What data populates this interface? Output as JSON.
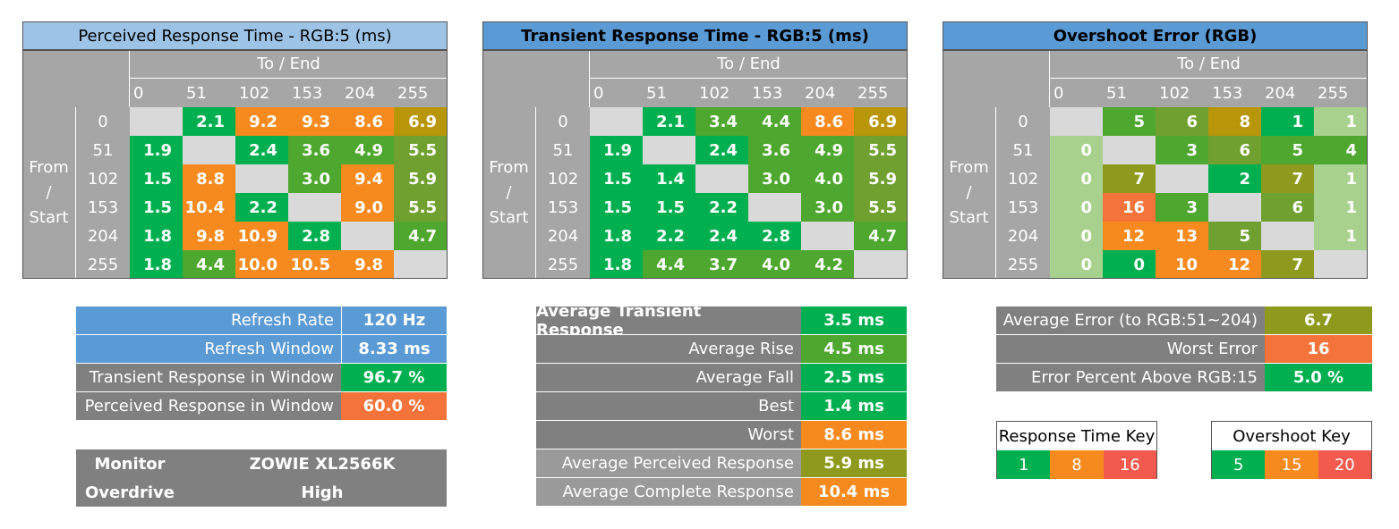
{
  "colors": {
    "green": "#00b050",
    "lime": "#4ea72e",
    "olive": "#70a030",
    "khaki": "#8e9a1e",
    "olivegold": "#a0a020",
    "gold": "#b8960a",
    "orange": "#f78a1e",
    "red_orange": "#f4733a",
    "red": "#f25a4e",
    "lightgreen": "#a9d18e",
    "grey": "#a6a6a6",
    "dark_grey": "#808080",
    "empty": "#d9d9d9",
    "blue_light": "#9dc3e6",
    "blue": "#5b9bd5"
  },
  "chart_data": [
    {
      "type": "heatmap",
      "title": "Perceived Response Time - RGB:5 (ms)",
      "xlabel": "To / End",
      "ylabel": "From / Start",
      "categories": [
        "0",
        "51",
        "102",
        "153",
        "204",
        "255"
      ],
      "values": [
        [
          null,
          2.1,
          9.2,
          9.3,
          8.6,
          6.9
        ],
        [
          1.9,
          null,
          2.4,
          3.6,
          4.9,
          5.5
        ],
        [
          1.5,
          8.8,
          null,
          3.0,
          9.4,
          5.9
        ],
        [
          1.5,
          10.4,
          2.2,
          null,
          9.0,
          5.5
        ],
        [
          1.8,
          9.8,
          10.9,
          2.8,
          null,
          4.7
        ],
        [
          1.8,
          4.4,
          10.0,
          10.5,
          9.8,
          null
        ]
      ],
      "display": [
        [
          "",
          "2.1",
          "9.2",
          "9.3",
          "8.6",
          "6.9"
        ],
        [
          "1.9",
          "",
          "2.4",
          "3.6",
          "4.9",
          "5.5"
        ],
        [
          "1.5",
          "8.8",
          "",
          "3.0",
          "9.4",
          "5.9"
        ],
        [
          "1.5",
          "10.4",
          "2.2",
          "",
          "9.0",
          "5.5"
        ],
        [
          "1.8",
          "9.8",
          "10.9",
          "2.8",
          "",
          "4.7"
        ],
        [
          "1.8",
          "4.4",
          "10.0",
          "10.5",
          "9.8",
          ""
        ]
      ],
      "cell_colors": [
        [
          "empty",
          "green",
          "orange",
          "orange",
          "orange",
          "gold"
        ],
        [
          "green",
          "empty",
          "green",
          "lime",
          "lime",
          "olive"
        ],
        [
          "green",
          "orange",
          "empty",
          "lime",
          "orange",
          "olive"
        ],
        [
          "green",
          "orange",
          "green",
          "empty",
          "orange",
          "olive"
        ],
        [
          "green",
          "orange",
          "orange",
          "green",
          "empty",
          "lime"
        ],
        [
          "green",
          "lime",
          "orange",
          "orange",
          "orange",
          "empty"
        ]
      ]
    },
    {
      "type": "heatmap",
      "title": "Transient Response Time - RGB:5 (ms)",
      "xlabel": "To / End",
      "ylabel": "From / Start",
      "categories": [
        "0",
        "51",
        "102",
        "153",
        "204",
        "255"
      ],
      "values": [
        [
          null,
          2.1,
          3.4,
          4.4,
          8.6,
          6.9
        ],
        [
          1.9,
          null,
          2.4,
          3.6,
          4.9,
          5.5
        ],
        [
          1.5,
          1.4,
          null,
          3.0,
          4.0,
          5.9
        ],
        [
          1.5,
          1.5,
          2.2,
          null,
          3.0,
          5.5
        ],
        [
          1.8,
          2.2,
          2.4,
          2.8,
          null,
          4.7
        ],
        [
          1.8,
          4.4,
          3.7,
          4.0,
          4.2,
          null
        ]
      ],
      "display": [
        [
          "",
          "2.1",
          "3.4",
          "4.4",
          "8.6",
          "6.9"
        ],
        [
          "1.9",
          "",
          "2.4",
          "3.6",
          "4.9",
          "5.5"
        ],
        [
          "1.5",
          "1.4",
          "",
          "3.0",
          "4.0",
          "5.9"
        ],
        [
          "1.5",
          "1.5",
          "2.2",
          "",
          "3.0",
          "5.5"
        ],
        [
          "1.8",
          "2.2",
          "2.4",
          "2.8",
          "",
          "4.7"
        ],
        [
          "1.8",
          "4.4",
          "3.7",
          "4.0",
          "4.2",
          ""
        ]
      ],
      "cell_colors": [
        [
          "empty",
          "green",
          "lime",
          "lime",
          "orange",
          "gold"
        ],
        [
          "green",
          "empty",
          "green",
          "lime",
          "lime",
          "olive"
        ],
        [
          "green",
          "green",
          "empty",
          "lime",
          "lime",
          "olive"
        ],
        [
          "green",
          "green",
          "green",
          "empty",
          "lime",
          "olive"
        ],
        [
          "green",
          "green",
          "green",
          "green",
          "empty",
          "lime"
        ],
        [
          "green",
          "lime",
          "lime",
          "lime",
          "lime",
          "empty"
        ]
      ]
    },
    {
      "type": "heatmap",
      "title": "Overshoot Error (RGB)",
      "xlabel": "To / End",
      "ylabel": "From / Start",
      "categories": [
        "0",
        "51",
        "102",
        "153",
        "204",
        "255"
      ],
      "values": [
        [
          null,
          5,
          6,
          8,
          1,
          1
        ],
        [
          0,
          null,
          3,
          6,
          5,
          4
        ],
        [
          0,
          7,
          null,
          2,
          7,
          1
        ],
        [
          0,
          16,
          3,
          null,
          6,
          1
        ],
        [
          0,
          12,
          13,
          5,
          null,
          1
        ],
        [
          0,
          0,
          10,
          12,
          7,
          null
        ]
      ],
      "display": [
        [
          "",
          "5",
          "6",
          "8",
          "1",
          "1"
        ],
        [
          "0",
          "",
          "3",
          "6",
          "5",
          "4"
        ],
        [
          "0",
          "7",
          "",
          "2",
          "7",
          "1"
        ],
        [
          "0",
          "16",
          "3",
          "",
          "6",
          "1"
        ],
        [
          "0",
          "12",
          "13",
          "5",
          "",
          "1"
        ],
        [
          "0",
          "0",
          "10",
          "12",
          "7",
          ""
        ]
      ],
      "cell_colors": [
        [
          "empty",
          "lime",
          "olive",
          "gold",
          "green",
          "lightgreen"
        ],
        [
          "lightgreen",
          "empty",
          "lime",
          "olive",
          "lime",
          "lime"
        ],
        [
          "lightgreen",
          "khaki",
          "empty",
          "green",
          "khaki",
          "lightgreen"
        ],
        [
          "lightgreen",
          "red_orange",
          "lime",
          "empty",
          "olive",
          "lightgreen"
        ],
        [
          "lightgreen",
          "orange",
          "orange",
          "olive",
          "empty",
          "lightgreen"
        ],
        [
          "lightgreen",
          "green",
          "orange",
          "orange",
          "khaki",
          "empty"
        ]
      ]
    }
  ],
  "axis": {
    "to_end": "To / End",
    "from": "From",
    "slash": "/",
    "start": "Start"
  },
  "refresh_table": [
    {
      "label": "Refresh Rate",
      "value": "120 Hz",
      "label_bg": "blue",
      "value_bg": "blue"
    },
    {
      "label": "Refresh Window",
      "value": "8.33 ms",
      "label_bg": "blue",
      "value_bg": "blue"
    },
    {
      "label": "Transient Response in Window",
      "value": "96.7 %",
      "label_bg": "dark_grey",
      "value_bg": "green"
    },
    {
      "label": "Perceived Response in Window",
      "value": "60.0 %",
      "label_bg": "dark_grey",
      "value_bg": "red_orange"
    }
  ],
  "monitor_info": {
    "monitor_label": "Monitor",
    "monitor_value": "ZOWIE XL2566K",
    "overdrive_label": "Overdrive",
    "overdrive_value": "High"
  },
  "averages_table": [
    {
      "label": "Average Transient Response",
      "value": "3.5 ms",
      "bold_label": true,
      "value_bg": "green"
    },
    {
      "label": "Average Rise",
      "value": "4.5 ms",
      "bold_label": false,
      "value_bg": "lime"
    },
    {
      "label": "Average Fall",
      "value": "2.5 ms",
      "bold_label": false,
      "value_bg": "green"
    },
    {
      "label": "Best",
      "value": "1.4 ms",
      "bold_label": false,
      "value_bg": "green"
    },
    {
      "label": "Worst",
      "value": "8.6 ms",
      "bold_label": false,
      "value_bg": "orange"
    },
    {
      "label": "Average Perceived Response",
      "value": "5.9 ms",
      "bold_label": false,
      "value_bg": "khaki"
    },
    {
      "label": "Average Complete Response",
      "value": "10.4 ms",
      "bold_label": false,
      "value_bg": "orange"
    }
  ],
  "error_table": [
    {
      "label": "Average Error (to RGB:51~204)",
      "value": "6.7",
      "value_bg": "khaki"
    },
    {
      "label": "Worst Error",
      "value": "16",
      "value_bg": "red_orange"
    },
    {
      "label": "Error Percent Above RGB:15",
      "value": "5.0 %",
      "value_bg": "green"
    }
  ],
  "response_key": {
    "title": "Response Time Key",
    "items": [
      {
        "label": "1",
        "color": "green"
      },
      {
        "label": "8",
        "color": "orange"
      },
      {
        "label": "16",
        "color": "red"
      }
    ]
  },
  "overshoot_key": {
    "title": "Overshoot Key",
    "items": [
      {
        "label": "5",
        "color": "green"
      },
      {
        "label": "15",
        "color": "orange"
      },
      {
        "label": "20",
        "color": "red"
      }
    ]
  }
}
